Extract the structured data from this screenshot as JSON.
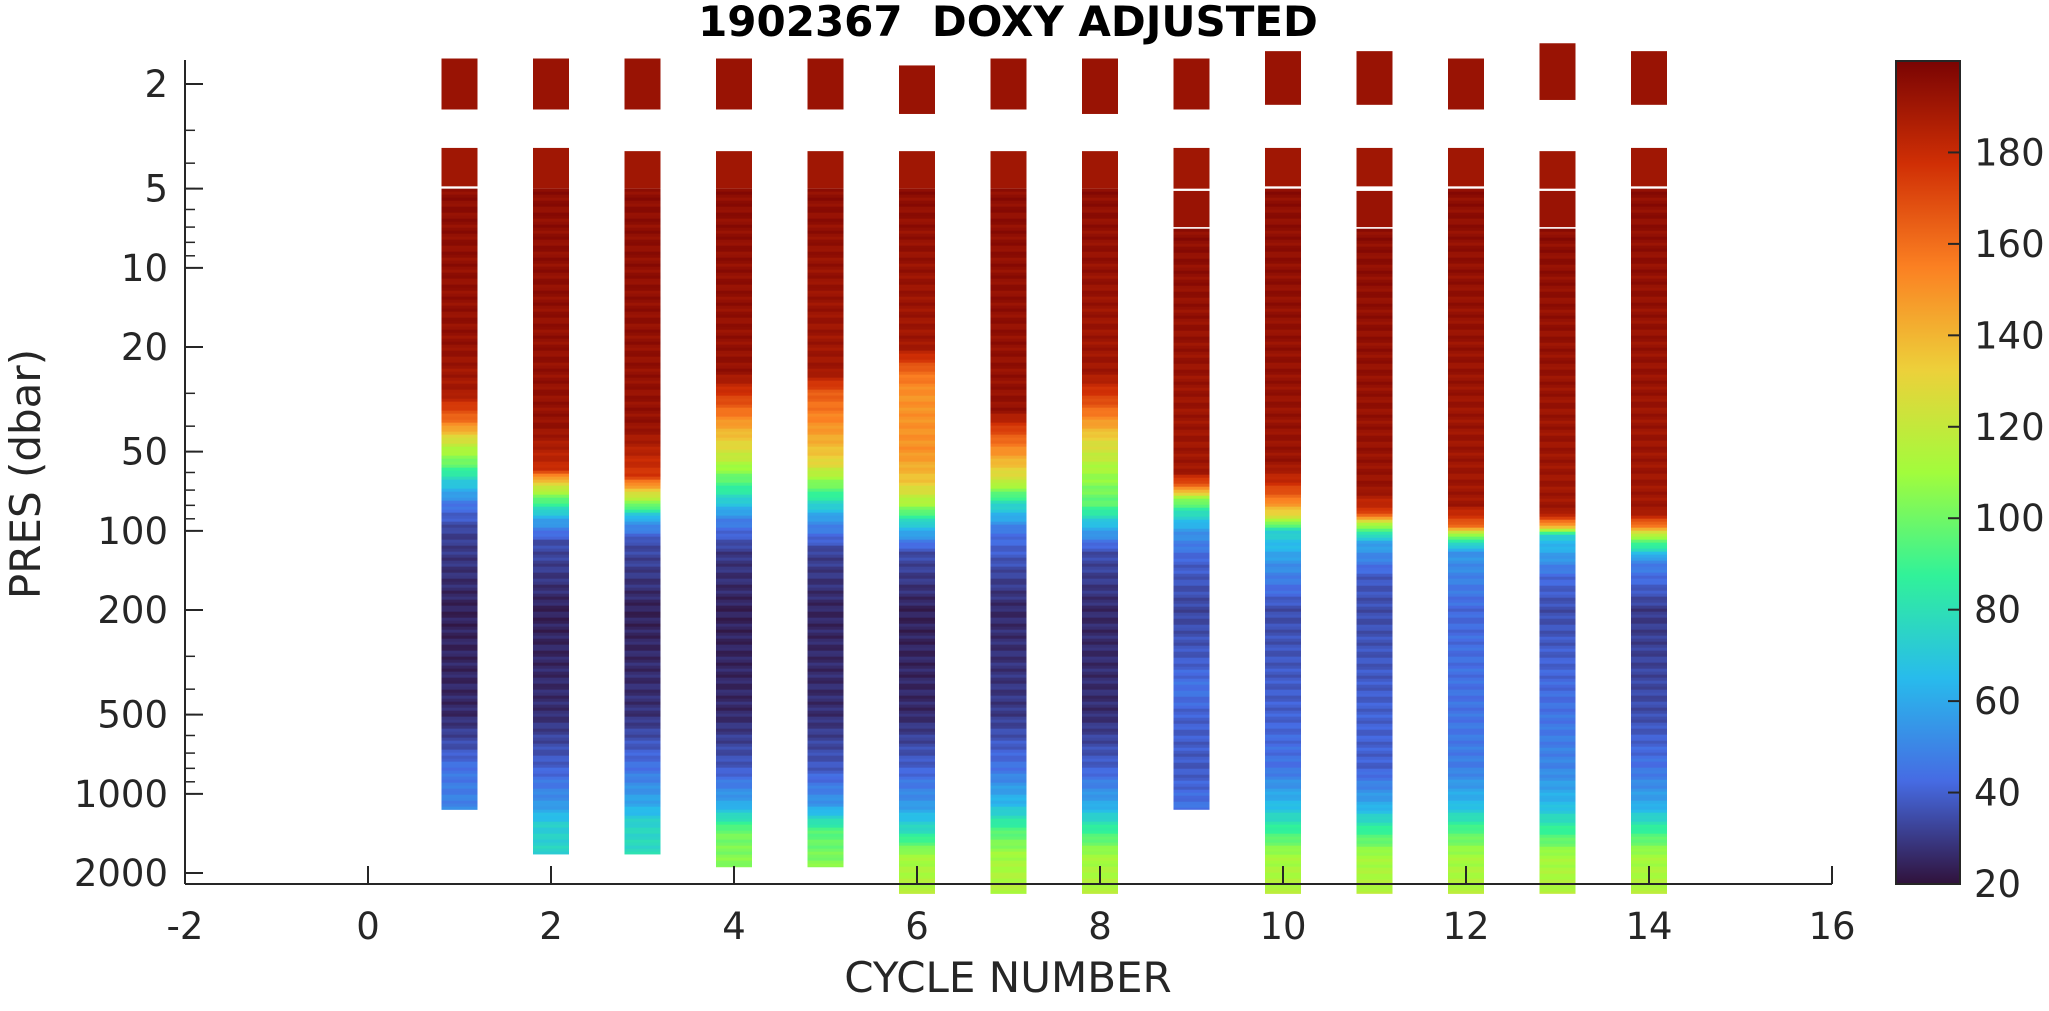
{
  "chart_data": {
    "type": "heatmap",
    "title": "1902367  DOXY ADJUSTED",
    "xlabel": "CYCLE NUMBER",
    "ylabel": "PRES (dbar)",
    "xlim": [
      -2,
      16
    ],
    "xticks": [
      -2,
      0,
      2,
      4,
      6,
      8,
      10,
      12,
      14,
      16
    ],
    "xtick_labels": [
      "-2",
      "0",
      "2",
      "4",
      "6",
      "8",
      "10",
      "12",
      "14",
      "16"
    ],
    "yscale": "log",
    "y_reversed": true,
    "ylim": [
      1.3,
      2500
    ],
    "yticks": [
      2,
      5,
      10,
      20,
      50,
      100,
      200,
      500,
      1000,
      2000
    ],
    "ytick_labels": [
      "2",
      "5",
      "10",
      "20",
      "50",
      "100",
      "200",
      "500",
      "1000",
      "2000"
    ],
    "colorbar": {
      "range": [
        20,
        200
      ],
      "ticks": [
        20,
        40,
        60,
        80,
        100,
        120,
        140,
        160,
        180
      ],
      "tick_labels": [
        "20",
        "40",
        "60",
        "80",
        "100",
        "120",
        "140",
        "160",
        "180"
      ],
      "colormap": "turbo"
    },
    "profiles": [
      {
        "cycle": 1,
        "surface": [
          [
            1.6,
            2.5,
            192
          ],
          [
            3.5,
            4.9,
            190
          ]
        ],
        "max_pres": 1150,
        "profile": [
          [
            5,
            195
          ],
          [
            20,
            193
          ],
          [
            30,
            188
          ],
          [
            38,
            160
          ],
          [
            45,
            125
          ],
          [
            55,
            100
          ],
          [
            65,
            72
          ],
          [
            80,
            45
          ],
          [
            100,
            32
          ],
          [
            200,
            24
          ],
          [
            500,
            26
          ],
          [
            650,
            35
          ],
          [
            800,
            45
          ],
          [
            1150,
            50
          ]
        ]
      },
      {
        "cycle": 2,
        "surface": [
          [
            1.6,
            2.5,
            192
          ],
          [
            3.5,
            5.0,
            190
          ]
        ],
        "max_pres": 1700,
        "profile": [
          [
            5,
            195
          ],
          [
            40,
            193
          ],
          [
            58,
            180
          ],
          [
            65,
            135
          ],
          [
            75,
            100
          ],
          [
            90,
            60
          ],
          [
            110,
            35
          ],
          [
            200,
            24
          ],
          [
            500,
            27
          ],
          [
            800,
            40
          ],
          [
            1100,
            55
          ],
          [
            1300,
            72
          ],
          [
            1700,
            75
          ]
        ]
      },
      {
        "cycle": 3,
        "surface": [
          [
            1.6,
            2.5,
            192
          ],
          [
            3.6,
            5.0,
            190
          ]
        ],
        "max_pres": 1700,
        "profile": [
          [
            5,
            195
          ],
          [
            40,
            193
          ],
          [
            62,
            175
          ],
          [
            70,
            135
          ],
          [
            80,
            100
          ],
          [
            90,
            60
          ],
          [
            110,
            35
          ],
          [
            200,
            24
          ],
          [
            500,
            28
          ],
          [
            800,
            45
          ],
          [
            1100,
            60
          ],
          [
            1300,
            75
          ],
          [
            1700,
            78
          ]
        ]
      },
      {
        "cycle": 4,
        "surface": [
          [
            1.6,
            2.5,
            192
          ],
          [
            3.6,
            5.0,
            190
          ]
        ],
        "max_pres": 1900,
        "profile": [
          [
            5,
            195
          ],
          [
            25,
            193
          ],
          [
            32,
            170
          ],
          [
            40,
            145
          ],
          [
            55,
            115
          ],
          [
            70,
            85
          ],
          [
            90,
            50
          ],
          [
            120,
            30
          ],
          [
            200,
            24
          ],
          [
            500,
            26
          ],
          [
            800,
            38
          ],
          [
            1100,
            60
          ],
          [
            1400,
            100
          ],
          [
            1900,
            105
          ]
        ]
      },
      {
        "cycle": 5,
        "surface": [
          [
            1.6,
            2.5,
            192
          ],
          [
            3.6,
            5.0,
            190
          ]
        ],
        "max_pres": 1900,
        "profile": [
          [
            5,
            195
          ],
          [
            25,
            190
          ],
          [
            30,
            165
          ],
          [
            40,
            150
          ],
          [
            55,
            130
          ],
          [
            70,
            95
          ],
          [
            90,
            55
          ],
          [
            120,
            32
          ],
          [
            200,
            25
          ],
          [
            500,
            27
          ],
          [
            800,
            38
          ],
          [
            1100,
            55
          ],
          [
            1400,
            95
          ],
          [
            1900,
            105
          ]
        ]
      },
      {
        "cycle": 6,
        "surface": [
          [
            1.7,
            2.6,
            192
          ],
          [
            3.6,
            5.0,
            190
          ]
        ],
        "max_pres": 2400,
        "profile": [
          [
            5,
            195
          ],
          [
            20,
            190
          ],
          [
            25,
            160
          ],
          [
            30,
            150
          ],
          [
            50,
            150
          ],
          [
            65,
            135
          ],
          [
            80,
            110
          ],
          [
            95,
            70
          ],
          [
            120,
            35
          ],
          [
            200,
            24
          ],
          [
            500,
            26
          ],
          [
            800,
            40
          ],
          [
            1100,
            55
          ],
          [
            1400,
            80
          ],
          [
            1700,
            110
          ],
          [
            2400,
            115
          ]
        ]
      },
      {
        "cycle": 7,
        "surface": [
          [
            1.6,
            2.5,
            192
          ],
          [
            3.6,
            5.0,
            190
          ]
        ],
        "max_pres": 2400,
        "profile": [
          [
            5,
            195
          ],
          [
            35,
            193
          ],
          [
            42,
            170
          ],
          [
            50,
            150
          ],
          [
            65,
            120
          ],
          [
            80,
            75
          ],
          [
            100,
            45
          ],
          [
            150,
            32
          ],
          [
            200,
            26
          ],
          [
            500,
            30
          ],
          [
            800,
            45
          ],
          [
            1100,
            65
          ],
          [
            1400,
            95
          ],
          [
            1700,
            110
          ],
          [
            2400,
            115
          ]
        ]
      },
      {
        "cycle": 8,
        "surface": [
          [
            1.6,
            2.6,
            192
          ],
          [
            3.6,
            5.0,
            190
          ]
        ],
        "max_pres": 2400,
        "profile": [
          [
            5,
            195
          ],
          [
            25,
            190
          ],
          [
            32,
            170
          ],
          [
            45,
            130
          ],
          [
            60,
            110
          ],
          [
            80,
            95
          ],
          [
            95,
            65
          ],
          [
            120,
            35
          ],
          [
            200,
            26
          ],
          [
            500,
            27
          ],
          [
            800,
            40
          ],
          [
            1100,
            60
          ],
          [
            1400,
            90
          ],
          [
            1700,
            110
          ],
          [
            2400,
            115
          ]
        ]
      },
      {
        "cycle": 9,
        "surface": [
          [
            1.6,
            2.5,
            192
          ],
          [
            3.5,
            5.0,
            190
          ],
          [
            5.1,
            7.0,
            192
          ]
        ],
        "max_pres": 1150,
        "profile": [
          [
            7.1,
            195
          ],
          [
            60,
            190
          ],
          [
            68,
            160
          ],
          [
            75,
            110
          ],
          [
            85,
            80
          ],
          [
            100,
            55
          ],
          [
            130,
            40
          ],
          [
            200,
            33
          ],
          [
            300,
            38
          ],
          [
            400,
            45
          ],
          [
            500,
            40
          ],
          [
            800,
            38
          ],
          [
            1150,
            45
          ]
        ]
      },
      {
        "cycle": 10,
        "surface": [
          [
            1.5,
            2.4,
            192
          ],
          [
            3.5,
            4.9,
            190
          ]
        ],
        "max_pres": 2400,
        "profile": [
          [
            5,
            195
          ],
          [
            55,
            192
          ],
          [
            65,
            180
          ],
          [
            75,
            160
          ],
          [
            90,
            120
          ],
          [
            100,
            75
          ],
          [
            130,
            55
          ],
          [
            200,
            35
          ],
          [
            500,
            40
          ],
          [
            800,
            45
          ],
          [
            1100,
            65
          ],
          [
            1400,
            90
          ],
          [
            1700,
            110
          ],
          [
            2400,
            115
          ]
        ]
      },
      {
        "cycle": 11,
        "surface": [
          [
            1.5,
            2.4,
            192
          ],
          [
            3.5,
            4.9,
            190
          ],
          [
            5.1,
            7.0,
            192
          ]
        ],
        "max_pres": 2400,
        "profile": [
          [
            7.1,
            195
          ],
          [
            70,
            192
          ],
          [
            85,
            175
          ],
          [
            95,
            110
          ],
          [
            110,
            60
          ],
          [
            150,
            38
          ],
          [
            200,
            35
          ],
          [
            500,
            40
          ],
          [
            800,
            40
          ],
          [
            1100,
            60
          ],
          [
            1400,
            90
          ],
          [
            1700,
            110
          ],
          [
            2400,
            115
          ]
        ]
      },
      {
        "cycle": 12,
        "surface": [
          [
            1.6,
            2.5,
            192
          ],
          [
            3.5,
            4.9,
            190
          ]
        ],
        "max_pres": 2400,
        "profile": [
          [
            5,
            195
          ],
          [
            80,
            190
          ],
          [
            95,
            165
          ],
          [
            105,
            100
          ],
          [
            120,
            55
          ],
          [
            200,
            42
          ],
          [
            500,
            45
          ],
          [
            800,
            48
          ],
          [
            1100,
            65
          ],
          [
            1400,
            95
          ],
          [
            1700,
            110
          ],
          [
            2400,
            115
          ]
        ]
      },
      {
        "cycle": 13,
        "surface": [
          [
            1.4,
            2.3,
            192
          ],
          [
            3.6,
            5.0,
            190
          ],
          [
            5.1,
            7.0,
            192
          ]
        ],
        "max_pres": 2400,
        "profile": [
          [
            7.1,
            195
          ],
          [
            85,
            190
          ],
          [
            95,
            150
          ],
          [
            105,
            70
          ],
          [
            150,
            42
          ],
          [
            200,
            35
          ],
          [
            500,
            45
          ],
          [
            800,
            50
          ],
          [
            1100,
            65
          ],
          [
            1400,
            90
          ],
          [
            1700,
            110
          ],
          [
            2400,
            115
          ]
        ]
      },
      {
        "cycle": 14,
        "surface": [
          [
            1.5,
            2.4,
            192
          ],
          [
            3.5,
            4.9,
            190
          ]
        ],
        "max_pres": 2400,
        "profile": [
          [
            5,
            195
          ],
          [
            85,
            190
          ],
          [
            95,
            160
          ],
          [
            105,
            110
          ],
          [
            130,
            50
          ],
          [
            200,
            30
          ],
          [
            500,
            35
          ],
          [
            800,
            45
          ],
          [
            1100,
            60
          ],
          [
            1400,
            90
          ],
          [
            1700,
            110
          ],
          [
            2400,
            115
          ]
        ]
      }
    ]
  }
}
